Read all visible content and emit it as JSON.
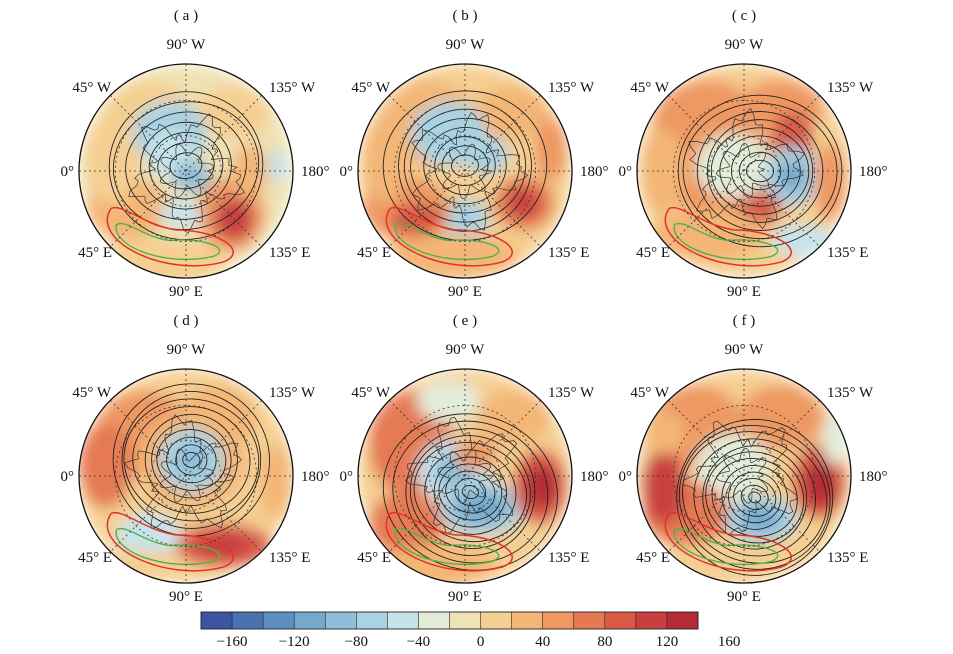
{
  "figure": {
    "panels": [
      {
        "label": "( a )",
        "lon_labels": {
          "top": "90° W",
          "upper_left": "45° W",
          "upper_right": "135° W",
          "left": "0°",
          "right": "180°",
          "lower_left": "45° E",
          "lower_right": "135° E",
          "bottom": "90° E"
        }
      },
      {
        "label": "( b )",
        "lon_labels": {
          "top": "90° W",
          "upper_left": "45° W",
          "upper_right": "135° W",
          "left": "0°",
          "right": "180°",
          "lower_left": "45° E",
          "lower_right": "135° E",
          "bottom": "90° E"
        }
      },
      {
        "label": "( c )",
        "lon_labels": {
          "top": "90° W",
          "upper_left": "45° W",
          "upper_right": "135° W",
          "left": "0°",
          "right": "180°",
          "lower_left": "45° E",
          "lower_right": "135° E",
          "bottom": "90° E"
        }
      },
      {
        "label": "( d )",
        "lon_labels": {
          "top": "90° W",
          "upper_left": "45° W",
          "upper_right": "135° W",
          "left": "0°",
          "right": "180°",
          "lower_left": "45° E",
          "lower_right": "135° E",
          "bottom": "90° E"
        }
      },
      {
        "label": "( e )",
        "lon_labels": {
          "top": "90° W",
          "upper_left": "45° W",
          "upper_right": "135° W",
          "left": "0°",
          "right": "180°",
          "lower_left": "45° E",
          "lower_right": "135° E",
          "bottom": "90° E"
        }
      },
      {
        "label": "( f )",
        "lon_labels": {
          "top": "90° W",
          "upper_left": "45° W",
          "upper_right": "135° W",
          "left": "0°",
          "right": "180°",
          "lower_left": "45° E",
          "lower_right": "135° E",
          "bottom": "90° E"
        }
      }
    ],
    "colorbar": {
      "tick_labels": [
        "−160",
        "−120",
        "−80",
        "−40",
        "0",
        "40",
        "80",
        "120",
        "160"
      ],
      "colors": [
        "#3b55a0",
        "#4a72b0",
        "#5d8ec0",
        "#74a8cc",
        "#8fbfd8",
        "#a9d2e2",
        "#c7e3ea",
        "#e2ecd9",
        "#efe2b4",
        "#f5cf92",
        "#f3b676",
        "#ee9862",
        "#e57a52",
        "#d85a46",
        "#c93f3f",
        "#b52a36"
      ]
    },
    "colors": {
      "contour": "#222222",
      "contour_red": "#e0332a",
      "contour_green": "#55b04a",
      "background": "#ffffff"
    }
  }
}
